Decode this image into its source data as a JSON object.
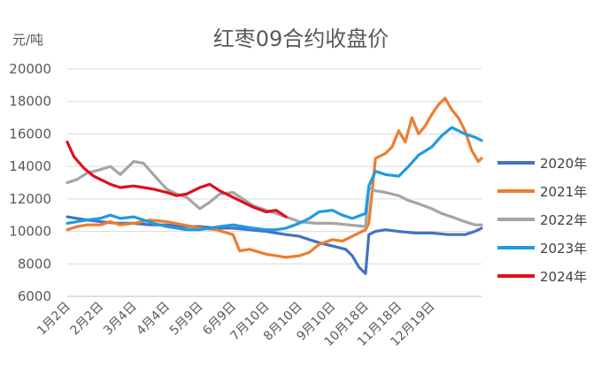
{
  "chart_data": {
    "type": "line",
    "title": "红枣09合约收盘价",
    "ylabel": "元/吨",
    "ylim": [
      6000,
      20000
    ],
    "yticks": [
      "6000",
      "8000",
      "10000",
      "12000",
      "14000",
      "16000",
      "18000",
      "20000"
    ],
    "categories": [
      "1月2日",
      "2月2日",
      "3月4日",
      "4月4日",
      "5月9日",
      "6月9日",
      "7月10日",
      "8月10日",
      "9月10日",
      "10月18日",
      "11月18日",
      "12月19日"
    ],
    "grid": true,
    "legend_position": "right",
    "series": [
      {
        "name": "2020年",
        "color": "#4472C4",
        "x": [
          0,
          0.3,
          0.6,
          1,
          1.5,
          2,
          2.5,
          3,
          3.5,
          4,
          4.5,
          5,
          5.5,
          6,
          6.3,
          6.6,
          7,
          7.3,
          7.6,
          8,
          8.2,
          8.4,
          8.6,
          8.8,
          9,
          9.1,
          9.3,
          9.6,
          10,
          10.5,
          11,
          11.5,
          12,
          12.3,
          12.5
        ],
        "values": [
          10900,
          10800,
          10700,
          10600,
          10500,
          10500,
          10400,
          10400,
          10300,
          10300,
          10200,
          10200,
          10100,
          10000,
          9900,
          9800,
          9700,
          9500,
          9300,
          9100,
          9000,
          8900,
          8500,
          7800,
          7400,
          9800,
          10000,
          10100,
          10000,
          9900,
          9900,
          9800,
          9800,
          10000,
          10200
        ]
      },
      {
        "name": "2021年",
        "color": "#ED7D31",
        "x": [
          0,
          0.3,
          0.6,
          1,
          1.3,
          1.6,
          2,
          2.5,
          3,
          3.5,
          4,
          4.5,
          5,
          5.2,
          5.5,
          6,
          6.3,
          6.6,
          7,
          7.3,
          7.6,
          8,
          8.3,
          8.6,
          9,
          9.1,
          9.3,
          9.6,
          9.8,
          10,
          10.2,
          10.4,
          10.6,
          10.8,
          11,
          11.2,
          11.4,
          11.6,
          11.8,
          12,
          12.2,
          12.4,
          12.5
        ],
        "values": [
          10100,
          10300,
          10400,
          10400,
          10600,
          10400,
          10500,
          10700,
          10600,
          10400,
          10200,
          10100,
          9800,
          8800,
          8900,
          8600,
          8500,
          8400,
          8500,
          8700,
          9200,
          9500,
          9400,
          9700,
          10100,
          10500,
          14500,
          14800,
          15200,
          16200,
          15500,
          17000,
          16000,
          16500,
          17200,
          17800,
          18200,
          17500,
          17000,
          16200,
          15000,
          14300,
          14500
        ]
      },
      {
        "name": "2022年",
        "color": "#A5A5A5",
        "x": [
          0,
          0.3,
          0.6,
          1,
          1.3,
          1.6,
          2,
          2.3,
          2.6,
          3,
          3.3,
          3.6,
          4,
          4.3,
          4.6,
          5,
          5.3,
          5.6,
          6,
          6.3,
          6.6,
          7,
          7.5,
          8,
          8.5,
          9,
          9.1,
          9.3,
          9.6,
          10,
          10.3,
          10.6,
          11,
          11.3,
          11.6,
          12,
          12.3,
          12.5
        ],
        "values": [
          13000,
          13200,
          13600,
          13800,
          14000,
          13500,
          14300,
          14200,
          13500,
          12600,
          12300,
          12100,
          11400,
          11800,
          12300,
          12400,
          12000,
          11600,
          11300,
          11100,
          10900,
          10600,
          10500,
          10500,
          10400,
          10300,
          12700,
          12500,
          12400,
          12200,
          11900,
          11700,
          11400,
          11100,
          10900,
          10600,
          10400,
          10400
        ]
      },
      {
        "name": "2023年",
        "color": "#1E9BE0",
        "x": [
          0,
          0.3,
          0.6,
          1,
          1.3,
          1.6,
          2,
          2.3,
          2.6,
          3,
          3.3,
          3.6,
          4,
          4.3,
          4.6,
          5,
          5.3,
          5.6,
          6,
          6.3,
          6.6,
          7,
          7.3,
          7.6,
          8,
          8.3,
          8.6,
          9,
          9.1,
          9.3,
          9.6,
          10,
          10.3,
          10.6,
          11,
          11.3,
          11.6,
          12,
          12.3,
          12.5
        ],
        "values": [
          10500,
          10600,
          10700,
          10800,
          11000,
          10800,
          10900,
          10700,
          10500,
          10300,
          10200,
          10100,
          10100,
          10200,
          10300,
          10400,
          10300,
          10200,
          10100,
          10100,
          10200,
          10500,
          10800,
          11200,
          11300,
          11000,
          10800,
          11100,
          12800,
          13700,
          13500,
          13400,
          14000,
          14700,
          15200,
          15900,
          16400,
          16000,
          15800,
          15600
        ]
      },
      {
        "name": "2024年",
        "color": "#E0101A",
        "x": [
          0,
          0.2,
          0.5,
          0.8,
          1,
          1.3,
          1.6,
          2,
          2.3,
          2.6,
          3,
          3.3,
          3.6,
          4,
          4.3,
          4.6,
          5,
          5.3,
          5.6,
          6,
          6.3,
          6.6
        ],
        "values": [
          15500,
          14600,
          13900,
          13400,
          13200,
          12900,
          12700,
          12800,
          12700,
          12600,
          12400,
          12200,
          12300,
          12700,
          12900,
          12500,
          12100,
          11800,
          11500,
          11200,
          11300,
          10900
        ]
      }
    ]
  }
}
